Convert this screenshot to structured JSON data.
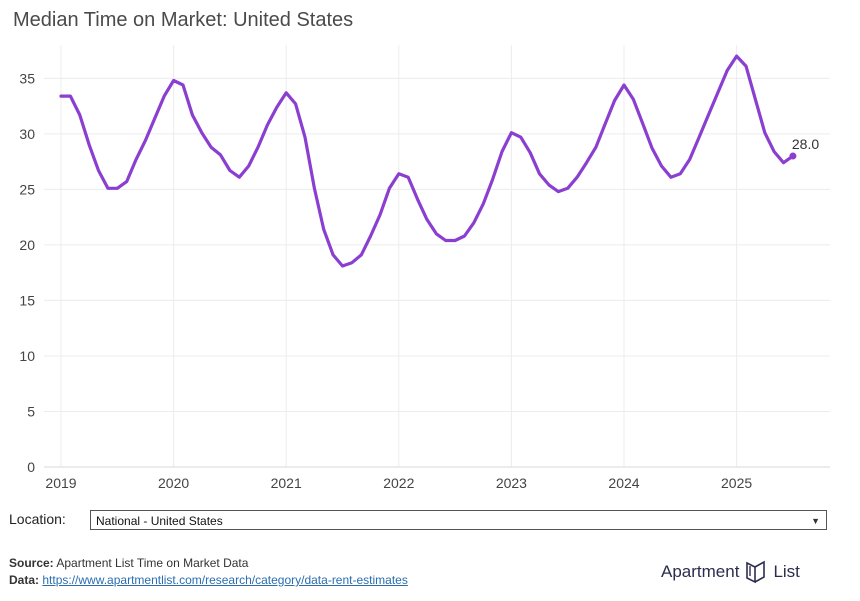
{
  "title": "Median Time on Market: United States",
  "location": {
    "label": "Location:",
    "selected": "National - United States"
  },
  "footer": {
    "source_label": "Source:",
    "source_text": "Apartment List Time on Market Data",
    "data_label": "Data:",
    "data_link": "https://www.apartmentlist.com/research/category/data-rent-estimates"
  },
  "logo": {
    "text_left": "Apartment",
    "text_right": "List"
  },
  "chart_data": {
    "type": "line",
    "title": "Median Time on Market: United States",
    "xlabel": "",
    "ylabel": "",
    "ylim": [
      0,
      38
    ],
    "yticks": [
      0,
      5,
      10,
      15,
      20,
      25,
      30,
      35
    ],
    "xticks": [
      "2019",
      "2020",
      "2021",
      "2022",
      "2023",
      "2024",
      "2025"
    ],
    "grid": true,
    "line_color": "#8a3fd1",
    "end_label": "28.0",
    "x": [
      "2019-01",
      "2019-02",
      "2019-03",
      "2019-04",
      "2019-05",
      "2019-06",
      "2019-07",
      "2019-08",
      "2019-09",
      "2019-10",
      "2019-11",
      "2019-12",
      "2020-01",
      "2020-02",
      "2020-03",
      "2020-04",
      "2020-05",
      "2020-06",
      "2020-07",
      "2020-08",
      "2020-09",
      "2020-10",
      "2020-11",
      "2020-12",
      "2021-01",
      "2021-02",
      "2021-03",
      "2021-04",
      "2021-05",
      "2021-06",
      "2021-07",
      "2021-08",
      "2021-09",
      "2021-10",
      "2021-11",
      "2021-12",
      "2022-01",
      "2022-02",
      "2022-03",
      "2022-04",
      "2022-05",
      "2022-06",
      "2022-07",
      "2022-08",
      "2022-09",
      "2022-10",
      "2022-11",
      "2022-12",
      "2023-01",
      "2023-02",
      "2023-03",
      "2023-04",
      "2023-05",
      "2023-06",
      "2023-07",
      "2023-08",
      "2023-09",
      "2023-10",
      "2023-11",
      "2023-12",
      "2024-01",
      "2024-02",
      "2024-03",
      "2024-04",
      "2024-05",
      "2024-06",
      "2024-07",
      "2024-08",
      "2024-09",
      "2024-10",
      "2024-11",
      "2024-12",
      "2025-01",
      "2025-02",
      "2025-03",
      "2025-04",
      "2025-05",
      "2025-06",
      "2025-07"
    ],
    "values": [
      33.4,
      33.4,
      31.7,
      29.0,
      26.7,
      25.1,
      25.1,
      25.7,
      27.7,
      29.4,
      31.4,
      33.4,
      34.8,
      34.4,
      31.7,
      30.1,
      28.8,
      28.1,
      26.7,
      26.1,
      27.1,
      28.8,
      30.8,
      32.4,
      33.7,
      32.7,
      29.7,
      25.1,
      21.4,
      19.1,
      18.1,
      18.4,
      19.1,
      20.8,
      22.7,
      25.1,
      26.4,
      26.1,
      24.1,
      22.3,
      21.0,
      20.4,
      20.4,
      20.8,
      22.0,
      23.7,
      25.9,
      28.4,
      30.1,
      29.7,
      28.3,
      26.4,
      25.4,
      24.8,
      25.1,
      26.1,
      27.4,
      28.8,
      30.9,
      33.0,
      34.4,
      33.1,
      30.9,
      28.7,
      27.1,
      26.1,
      26.4,
      27.7,
      29.7,
      31.7,
      33.7,
      35.7,
      37.0,
      36.1,
      33.1,
      30.1,
      28.4,
      27.4,
      28.0
    ]
  }
}
